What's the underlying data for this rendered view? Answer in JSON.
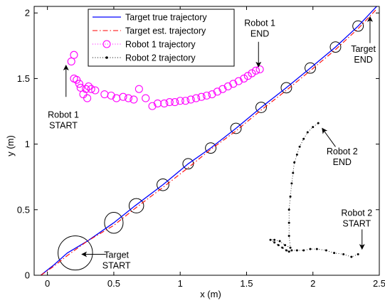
{
  "chart_data": {
    "type": "line",
    "xlabel": "x (m)",
    "ylabel": "y (m)",
    "xlim": [
      -0.1,
      2.5
    ],
    "ylim": [
      0,
      2.05
    ],
    "xticks": [
      0,
      0.5,
      1,
      1.5,
      2,
      2.5
    ],
    "xtick_labels": [
      "0",
      "0.5",
      "1",
      "1.5",
      "2",
      "2.5"
    ],
    "yticks": [
      0,
      0.5,
      1,
      1.5,
      2
    ],
    "ytick_labels": [
      "0",
      "0.5",
      "1",
      "1.5",
      "2"
    ],
    "grid": false,
    "legend_position": "top-center",
    "colors": {
      "true_traj": "#0000ff",
      "est_traj": "#ff0000",
      "robot1": "#ff00ff",
      "robot2": "#000000",
      "target_circles": "#000000"
    },
    "series": [
      {
        "name": "Target true trajectory",
        "style": "solid",
        "x": [
          -0.05,
          0.05,
          0.15,
          0.3,
          0.5,
          0.66,
          0.87,
          1.06,
          1.23,
          1.42,
          1.61,
          1.8,
          1.98,
          2.17,
          2.34,
          2.48
        ],
        "y": [
          0.0,
          0.08,
          0.17,
          0.26,
          0.4,
          0.53,
          0.69,
          0.85,
          0.97,
          1.12,
          1.28,
          1.43,
          1.58,
          1.74,
          1.9,
          2.05
        ]
      },
      {
        "name": "Target est. trajectory",
        "style": "dash-dot",
        "x": [
          -0.05,
          0.05,
          0.15,
          0.3,
          0.5,
          0.66,
          0.87,
          1.06,
          1.23,
          1.42,
          1.61,
          1.8,
          1.98,
          2.17,
          2.34,
          2.48
        ],
        "y": [
          0.0,
          0.07,
          0.15,
          0.26,
          0.38,
          0.51,
          0.67,
          0.82,
          0.96,
          1.1,
          1.26,
          1.41,
          1.56,
          1.72,
          1.88,
          2.03
        ]
      },
      {
        "name": "Robot 1 trajectory",
        "style": "circle-markers",
        "x": [
          0.18,
          0.2,
          0.2,
          0.22,
          0.24,
          0.25,
          0.27,
          0.29,
          0.3,
          0.31,
          0.33,
          0.36,
          0.43,
          0.48,
          0.52,
          0.57,
          0.61,
          0.65,
          0.69,
          0.74,
          0.79,
          0.83,
          0.88,
          0.92,
          0.96,
          1.0,
          1.04,
          1.08,
          1.12,
          1.16,
          1.2,
          1.24,
          1.28,
          1.32,
          1.36,
          1.4,
          1.44,
          1.48,
          1.51,
          1.54,
          1.57,
          1.6
        ],
        "y": [
          1.63,
          1.68,
          1.5,
          1.49,
          1.46,
          1.43,
          1.38,
          1.42,
          1.35,
          1.44,
          1.42,
          1.41,
          1.38,
          1.37,
          1.35,
          1.36,
          1.35,
          1.34,
          1.42,
          1.35,
          1.29,
          1.31,
          1.31,
          1.32,
          1.32,
          1.33,
          1.33,
          1.34,
          1.35,
          1.36,
          1.37,
          1.38,
          1.4,
          1.42,
          1.44,
          1.46,
          1.48,
          1.5,
          1.52,
          1.54,
          1.56,
          1.57
        ]
      },
      {
        "name": "Robot 2 trajectory",
        "style": "dots",
        "x": [
          2.34,
          2.29,
          2.23,
          2.16,
          2.1,
          2.03,
          1.98,
          1.93,
          1.88,
          1.84,
          1.82,
          1.8,
          1.77,
          1.74,
          1.71,
          1.68,
          1.71,
          1.75,
          1.79,
          1.83,
          1.82,
          1.82,
          1.82,
          1.83,
          1.84,
          1.85,
          1.86,
          1.88,
          1.9,
          1.93,
          1.96,
          2.0,
          2.04
        ],
        "y": [
          0.16,
          0.14,
          0.16,
          0.17,
          0.19,
          0.2,
          0.2,
          0.19,
          0.19,
          0.19,
          0.18,
          0.19,
          0.21,
          0.23,
          0.25,
          0.27,
          0.27,
          0.26,
          0.23,
          0.21,
          0.3,
          0.4,
          0.5,
          0.6,
          0.7,
          0.78,
          0.86,
          0.92,
          0.98,
          1.04,
          1.09,
          1.13,
          1.16
        ]
      }
    ],
    "target_uncertainty_circles": [
      {
        "x": 0.21,
        "y": 0.17,
        "rx": 0.13,
        "ry": 0.13
      },
      {
        "x": 0.5,
        "y": 0.4,
        "rx": 0.07,
        "ry": 0.08
      },
      {
        "x": 0.67,
        "y": 0.53,
        "rx": 0.055,
        "ry": 0.055
      },
      {
        "x": 0.87,
        "y": 0.69,
        "rx": 0.045,
        "ry": 0.045
      },
      {
        "x": 1.06,
        "y": 0.85,
        "rx": 0.04,
        "ry": 0.04
      },
      {
        "x": 1.23,
        "y": 0.97,
        "rx": 0.04,
        "ry": 0.04
      },
      {
        "x": 1.42,
        "y": 1.12,
        "rx": 0.04,
        "ry": 0.04
      },
      {
        "x": 1.61,
        "y": 1.28,
        "rx": 0.04,
        "ry": 0.04
      },
      {
        "x": 1.8,
        "y": 1.43,
        "rx": 0.04,
        "ry": 0.04
      },
      {
        "x": 1.98,
        "y": 1.58,
        "rx": 0.04,
        "ry": 0.04
      },
      {
        "x": 2.17,
        "y": 1.74,
        "rx": 0.04,
        "ry": 0.04
      },
      {
        "x": 2.34,
        "y": 1.9,
        "rx": 0.04,
        "ry": 0.04
      }
    ],
    "annotations": [
      {
        "lines": [
          "Robot 1",
          "START"
        ],
        "text_x": 0.12,
        "text_y": 1.18,
        "arrow_from": [
          0.14,
          1.36
        ],
        "arrow_to": [
          0.14,
          1.6
        ]
      },
      {
        "lines": [
          "Robot 1",
          "END"
        ],
        "text_x": 1.6,
        "text_y": 1.88,
        "arrow_from": [
          1.59,
          1.78
        ],
        "arrow_to": [
          1.59,
          1.59
        ]
      },
      {
        "lines": [
          "Target",
          "END"
        ],
        "text_x": 2.38,
        "text_y": 1.68,
        "arrow_from": [
          2.43,
          1.77
        ],
        "arrow_to": [
          2.43,
          1.97
        ]
      },
      {
        "lines": [
          "Target",
          "START"
        ],
        "text_x": 0.52,
        "text_y": 0.11,
        "arrow_from": [
          0.44,
          0.16
        ],
        "arrow_to": [
          0.26,
          0.16
        ]
      },
      {
        "lines": [
          "Robot 2",
          "END"
        ],
        "text_x": 2.22,
        "text_y": 0.9,
        "arrow_from": [
          2.17,
          0.98
        ],
        "arrow_to": [
          2.07,
          1.12
        ]
      },
      {
        "lines": [
          "Robot 2",
          "START"
        ],
        "text_x": 2.33,
        "text_y": 0.43,
        "arrow_from": [
          2.37,
          0.35
        ],
        "arrow_to": [
          2.37,
          0.2
        ]
      }
    ]
  }
}
